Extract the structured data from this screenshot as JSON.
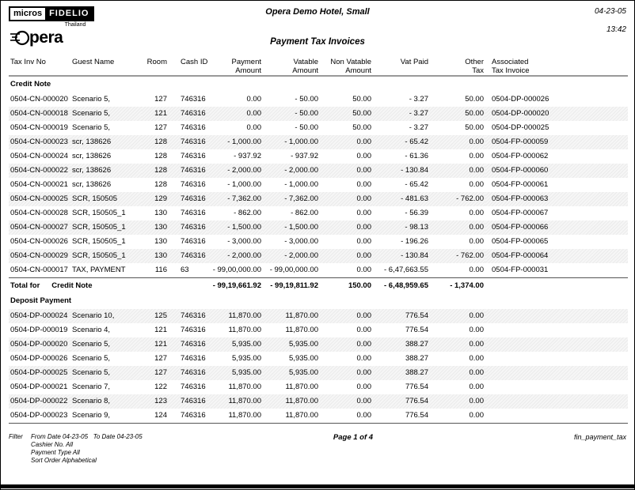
{
  "header": {
    "logo": {
      "micros": "micros",
      "fidelio": "FIDELIO",
      "country": "Thailand",
      "opera_rest": "pera"
    },
    "hotel_name": "Opera Demo Hotel, Small",
    "report_title": "Payment Tax Invoices",
    "date": "04-23-05",
    "time": "13:42"
  },
  "table": {
    "headers": [
      {
        "l1": "Tax Inv No",
        "l2": ""
      },
      {
        "l1": "Guest Name",
        "l2": ""
      },
      {
        "l1": "Room",
        "l2": ""
      },
      {
        "l1": "Cash ID",
        "l2": ""
      },
      {
        "l1": "Payment",
        "l2": "Amount"
      },
      {
        "l1": "Vatable",
        "l2": "Amount"
      },
      {
        "l1": "Non Vatable",
        "l2": "Amount"
      },
      {
        "l1": "Vat Paid",
        "l2": ""
      },
      {
        "l1": "Other",
        "l2": "Tax"
      },
      {
        "l1": "Associated",
        "l2": "Tax Invoice"
      }
    ],
    "sections": [
      {
        "name": "Credit Note",
        "rows": [
          [
            "0504-CN-000020",
            "Scenario 5,",
            "127",
            "746316",
            "0.00",
            "- 50.00",
            "50.00",
            "- 3.27",
            "50.00",
            "0504-DP-000026"
          ],
          [
            "0504-CN-000018",
            "Scenario 5,",
            "121",
            "746316",
            "0.00",
            "- 50.00",
            "50.00",
            "- 3.27",
            "50.00",
            "0504-DP-000020"
          ],
          [
            "0504-CN-000019",
            "Scenario 5,",
            "127",
            "746316",
            "0.00",
            "- 50.00",
            "50.00",
            "- 3.27",
            "50.00",
            "0504-DP-000025"
          ],
          [
            "0504-CN-000023",
            "scr, 138626",
            "128",
            "746316",
            "- 1,000.00",
            "- 1,000.00",
            "0.00",
            "- 65.42",
            "0.00",
            "0504-FP-000059"
          ],
          [
            "0504-CN-000024",
            "scr, 138626",
            "128",
            "746316",
            "- 937.92",
            "- 937.92",
            "0.00",
            "- 61.36",
            "0.00",
            "0504-FP-000062"
          ],
          [
            "0504-CN-000022",
            "scr, 138626",
            "128",
            "746316",
            "- 2,000.00",
            "- 2,000.00",
            "0.00",
            "- 130.84",
            "0.00",
            "0504-FP-000060"
          ],
          [
            "0504-CN-000021",
            "scr, 138626",
            "128",
            "746316",
            "- 1,000.00",
            "- 1,000.00",
            "0.00",
            "- 65.42",
            "0.00",
            "0504-FP-000061"
          ],
          [
            "0504-CN-000025",
            "SCR, 150505",
            "129",
            "746316",
            "- 7,362.00",
            "- 7,362.00",
            "0.00",
            "- 481.63",
            "- 762.00",
            "0504-FP-000063"
          ],
          [
            "0504-CN-000028",
            "SCR, 150505_1",
            "130",
            "746316",
            "- 862.00",
            "- 862.00",
            "0.00",
            "- 56.39",
            "0.00",
            "0504-FP-000067"
          ],
          [
            "0504-CN-000027",
            "SCR, 150505_1",
            "130",
            "746316",
            "- 1,500.00",
            "- 1,500.00",
            "0.00",
            "- 98.13",
            "0.00",
            "0504-FP-000066"
          ],
          [
            "0504-CN-000026",
            "SCR, 150505_1",
            "130",
            "746316",
            "- 3,000.00",
            "- 3,000.00",
            "0.00",
            "- 196.26",
            "0.00",
            "0504-FP-000065"
          ],
          [
            "0504-CN-000029",
            "SCR, 150505_1",
            "130",
            "746316",
            "- 2,000.00",
            "- 2,000.00",
            "0.00",
            "- 130.84",
            "- 762.00",
            "0504-FP-000064"
          ],
          [
            "0504-CN-000017",
            "TAX, PAYMENT",
            "116",
            "63",
            "- 99,00,000.00",
            "- 99,00,000.00",
            "0.00",
            "- 6,47,663.55",
            "0.00",
            "0504-FP-000031"
          ]
        ],
        "total": {
          "label": "Total for",
          "name": "Credit Note",
          "values": [
            "- 99,19,661.92",
            "- 99,19,811.92",
            "150.00",
            "- 6,48,959.65",
            "- 1,374.00",
            ""
          ]
        }
      },
      {
        "name": "Deposit Payment",
        "rows": [
          [
            "0504-DP-000024",
            "Scenario 10,",
            "125",
            "746316",
            "11,870.00",
            "11,870.00",
            "0.00",
            "776.54",
            "0.00",
            ""
          ],
          [
            "0504-DP-000019",
            "Scenario 4,",
            "121",
            "746316",
            "11,870.00",
            "11,870.00",
            "0.00",
            "776.54",
            "0.00",
            ""
          ],
          [
            "0504-DP-000020",
            "Scenario 5,",
            "121",
            "746316",
            "5,935.00",
            "5,935.00",
            "0.00",
            "388.27",
            "0.00",
            ""
          ],
          [
            "0504-DP-000026",
            "Scenario 5,",
            "127",
            "746316",
            "5,935.00",
            "5,935.00",
            "0.00",
            "388.27",
            "0.00",
            ""
          ],
          [
            "0504-DP-000025",
            "Scenario 5,",
            "127",
            "746316",
            "5,935.00",
            "5,935.00",
            "0.00",
            "388.27",
            "0.00",
            ""
          ],
          [
            "0504-DP-000021",
            "Scenario 7,",
            "122",
            "746316",
            "11,870.00",
            "11,870.00",
            "0.00",
            "776.54",
            "0.00",
            ""
          ],
          [
            "0504-DP-000022",
            "Scenario 8,",
            "123",
            "746316",
            "11,870.00",
            "11,870.00",
            "0.00",
            "776.54",
            "0.00",
            ""
          ],
          [
            "0504-DP-000023",
            "Scenario 9,",
            "124",
            "746316",
            "11,870.00",
            "11,870.00",
            "0.00",
            "776.54",
            "0.00",
            ""
          ]
        ]
      }
    ]
  },
  "footer": {
    "filter_label": "Filter",
    "filter_lines": [
      "From Date 04-23-05   To Date 04-23-05",
      "Cashier No. All",
      "Payment Type All",
      "Sort Order Alphabetical"
    ],
    "page": "Page 1 of 4",
    "report_id": "fin_payment_tax"
  }
}
